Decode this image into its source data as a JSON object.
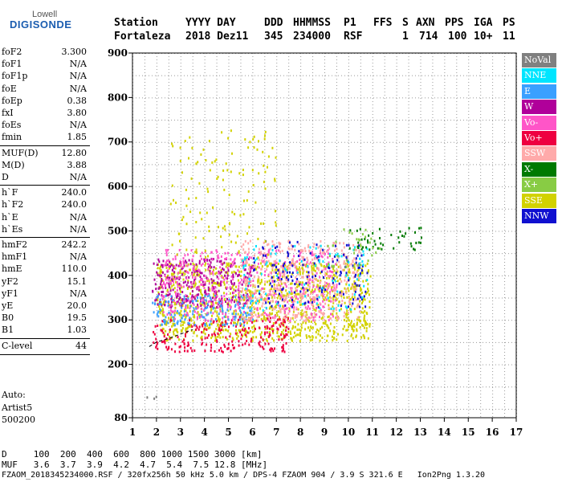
{
  "logo": {
    "top": "Lowell",
    "main": "DIGISONDE"
  },
  "header": {
    "row1": {
      "station_label": "Station",
      "date_label": "YYYY DAY",
      "doy_label": "DDD",
      "time_label": "HHMMSS",
      "p1_label": "P1",
      "ffs_label": "FFS",
      "s_label": "S",
      "axn_label": "AXN",
      "pps_label": "PPS",
      "iga_label": "IGA",
      "ps_label": "PS"
    },
    "row2": {
      "station": "Fortaleza",
      "date": "2018 Dez11",
      "doy": "345",
      "time": "234000",
      "p1": "RSF",
      "s": "1",
      "axn": "714",
      "pps": "100",
      "iga": "10+",
      "ps": "11"
    }
  },
  "params": [
    {
      "k": "foF2",
      "v": "3.300"
    },
    {
      "k": "foF1",
      "v": "N/A"
    },
    {
      "k": "foF1p",
      "v": "N/A"
    },
    {
      "k": "foE",
      "v": "N/A"
    },
    {
      "k": "foEp",
      "v": "0.38"
    },
    {
      "k": "fxI",
      "v": "3.80"
    },
    {
      "k": "foEs",
      "v": "N/A"
    },
    {
      "k": "fmin",
      "v": "1.85"
    },
    {
      "k": "MUF(D)",
      "v": "12.80"
    },
    {
      "k": "M(D)",
      "v": "3.88"
    },
    {
      "k": "D",
      "v": "N/A"
    },
    {
      "k": "h`F",
      "v": "240.0"
    },
    {
      "k": "h`F2",
      "v": "240.0"
    },
    {
      "k": "h`E",
      "v": "N/A"
    },
    {
      "k": "h`Es",
      "v": "N/A"
    },
    {
      "k": "hmF2",
      "v": "242.2"
    },
    {
      "k": "hmF1",
      "v": "N/A"
    },
    {
      "k": "hmE",
      "v": "110.0"
    },
    {
      "k": "yF2",
      "v": "15.1"
    },
    {
      "k": "yF1",
      "v": "N/A"
    },
    {
      "k": "yE",
      "v": "20.0"
    },
    {
      "k": "B0",
      "v": "19.5"
    },
    {
      "k": "B1",
      "v": "1.03"
    },
    {
      "k": "C-level",
      "v": "44"
    }
  ],
  "auto": {
    "l1": "Auto:",
    "l2": "Artist5",
    "l3": "500200"
  },
  "footer": {
    "d_row": "D     100  200  400  600  800 1000 1500 3000 [km]",
    "muf_row": "MUF   3.6  3.7  3.9  4.2  4.7  5.4  7.5 12.8 [MHz]",
    "file_row": "FZAOM_2018345234000.RSF / 320fx256h 50 kHz 5.0 km / DPS-4 FZAOM 904 / 3.9 S 321.6 E   Ion2Png 1.3.20"
  },
  "legend": [
    {
      "label": "NoVal",
      "color": "#808080"
    },
    {
      "label": "NNE",
      "color": "#00e5ff"
    },
    {
      "label": "E",
      "color": "#3aa0ff"
    },
    {
      "label": "W",
      "color": "#b0009a"
    },
    {
      "label": "Vo-",
      "color": "#ff55c8"
    },
    {
      "label": "Vo+",
      "color": "#ee0040"
    },
    {
      "label": "SSW",
      "color": "#ffaaaa"
    },
    {
      "label": "X-",
      "color": "#007a00"
    },
    {
      "label": "X+",
      "color": "#88cc44"
    },
    {
      "label": "SSE",
      "color": "#d2d200"
    },
    {
      "label": "NNW",
      "color": "#1010d0"
    }
  ],
  "chart_data": {
    "type": "scatter",
    "xlim": [
      1,
      17
    ],
    "ylim": [
      80,
      900
    ],
    "x_ticks": [
      1,
      2,
      3,
      4,
      5,
      6,
      7,
      8,
      9,
      10,
      11,
      12,
      13,
      14,
      15,
      16,
      17
    ],
    "y_ticks": [
      80,
      200,
      300,
      400,
      500,
      600,
      700,
      800,
      900
    ],
    "grid": true,
    "trace": [
      [
        1.7,
        240
      ],
      [
        2.0,
        250
      ],
      [
        2.5,
        258
      ],
      [
        3.0,
        268
      ],
      [
        3.5,
        278
      ]
    ],
    "regions": [
      {
        "name": "SSE",
        "x": [
          2.0,
          10.9
        ],
        "y": [
          255,
          430
        ],
        "density": 0.9
      },
      {
        "name": "Vo+",
        "x": [
          1.8,
          7.5
        ],
        "y": [
          230,
          310
        ],
        "density": 0.6
      },
      {
        "name": "W",
        "x": [
          1.8,
          6.0
        ],
        "y": [
          330,
          440
        ],
        "density": 0.8
      },
      {
        "name": "E",
        "x": [
          1.8,
          6.0
        ],
        "y": [
          290,
          360
        ],
        "density": 0.7
      },
      {
        "name": "Vo-",
        "x": [
          2.2,
          9.5
        ],
        "y": [
          300,
          460
        ],
        "density": 0.5
      },
      {
        "name": "SSW",
        "x": [
          5.5,
          10.5
        ],
        "y": [
          300,
          480
        ],
        "density": 0.6
      },
      {
        "name": "NNW",
        "x": [
          6.0,
          10.8
        ],
        "y": [
          330,
          480
        ],
        "density": 0.25
      },
      {
        "name": "NNE",
        "x": [
          5.5,
          10.8
        ],
        "y": [
          320,
          470
        ],
        "density": 0.15
      },
      {
        "name": "X-",
        "x": [
          10.0,
          13.2
        ],
        "y": [
          460,
          510
        ],
        "density": 0.35
      },
      {
        "name": "X+",
        "x": [
          9.0,
          11.5
        ],
        "y": [
          420,
          510
        ],
        "density": 0.2
      },
      {
        "name": "SSE",
        "x": [
          2.5,
          7.0
        ],
        "y": [
          440,
          730
        ],
        "density": 0.12
      },
      {
        "name": "NoVal",
        "x": [
          1.5,
          2.0
        ],
        "y": [
          120,
          132
        ],
        "density": 0.6
      }
    ]
  }
}
